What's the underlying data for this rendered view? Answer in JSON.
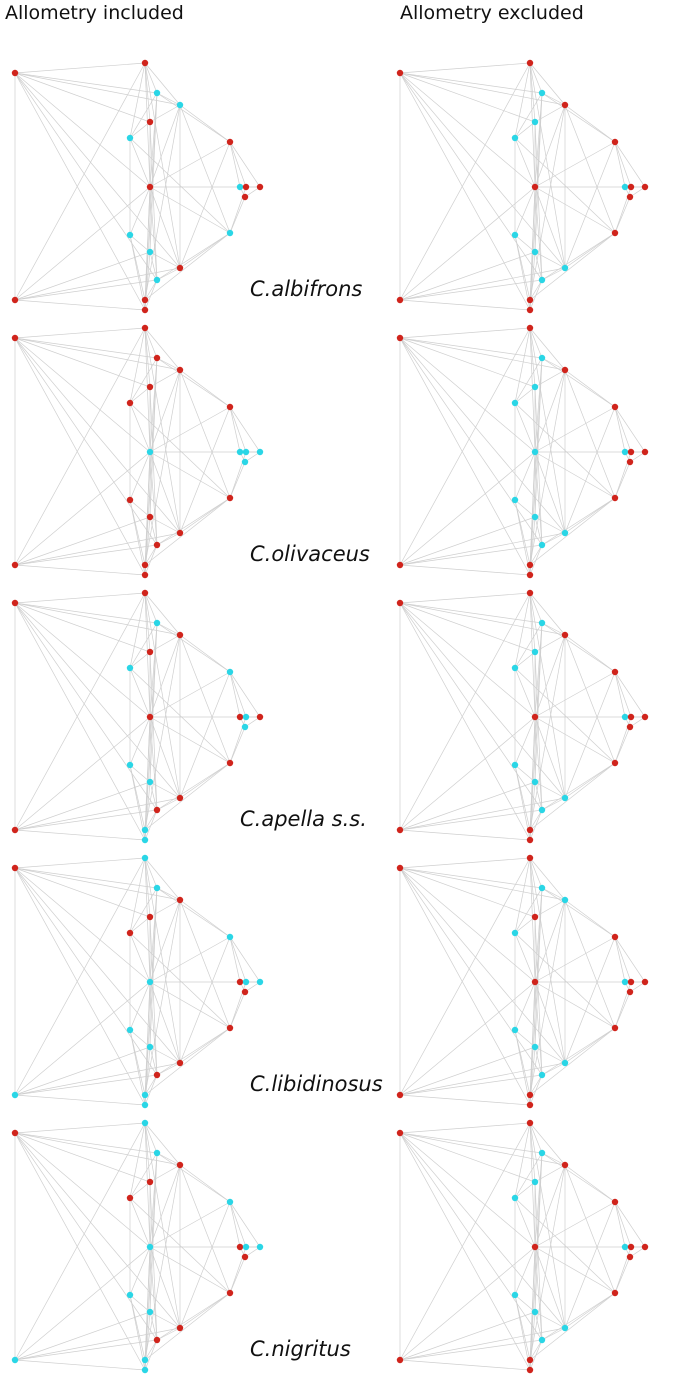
{
  "headers": {
    "left": "Allometry included",
    "right": "Allometry excluded"
  },
  "colors": {
    "positive": "#d0241c",
    "negative": "#2ad6e6",
    "edge": "#cfcfcf"
  },
  "rows": [
    {
      "species": "C.albifrons",
      "included": "rrccrcrcrrrrccrcrcrr",
      "excluded": "rrcccrrcrrrrcccrrcrr"
    },
    {
      "species": "C.olivaceus",
      "included": "rrrrrrrcccccrrrrrrrr",
      "excluded": "rrcccrrccrrrcccrrcrr"
    },
    {
      "species": "C.apella s.s.",
      "included": "rrccrrcrrcrcccrrcrrc",
      "excluded": "rrcccrrcrrrrcccrrcrr"
    },
    {
      "species": "C.libidinosus",
      "included": "rccrrrcrcccrccrrcrcc",
      "excluded": "rrccrcrcrrrrcccrrcrr"
    },
    {
      "species": "C.nigritus",
      "included": "rccrrrcrcccrccrrcrcc",
      "excluded": "rrcccrrcrrrrcccrrcrr"
    }
  ]
}
